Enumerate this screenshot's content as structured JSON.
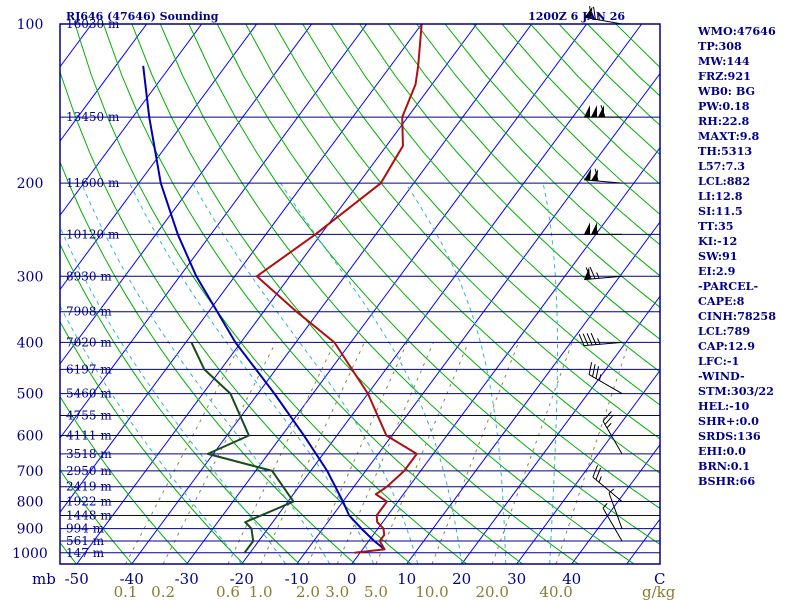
{
  "header": {
    "title": "RJ646 (47646) Sounding",
    "time": "1200Z  6 JAN 26"
  },
  "indices": [
    "WMO:47646",
    "TP:308",
    "MW:144",
    "FRZ:921",
    "WB0: BG",
    "PW:0.18",
    "RH:22.8",
    "MAXT:9.8",
    "TH:5313",
    "L57:7.3",
    "LCL:882",
    "LI:12.8",
    "SI:11.5",
    "TT:35",
    "KI:-12",
    "SW:91",
    "EI:2.9",
    "-PARCEL-",
    "CAPE:8",
    "CINH:78258",
    "LCL:789",
    "CAP:12.9",
    "LFC:-1",
    "-WIND-",
    "STM:303/22",
    "HEL:-10",
    "SHR+:0.0",
    "SRDS:136",
    "EHI:0.0",
    "BRN:0.1",
    "BSHR:66"
  ],
  "chart_data": {
    "type": "skew-t",
    "pressure_axis": {
      "label": "mb",
      "ticks": [
        100,
        200,
        300,
        400,
        500,
        600,
        700,
        800,
        900,
        1000
      ],
      "range": [
        100,
        1000
      ],
      "scale": "log"
    },
    "temperature_axis": {
      "unit": "C",
      "ticks": [
        -50,
        -40,
        -30,
        -20,
        -10,
        0,
        10,
        20,
        30,
        40
      ],
      "tick_labels": [
        "-50",
        "-40",
        "-30",
        "-20",
        "-10",
        "0",
        "10",
        "20",
        "30",
        "40"
      ]
    },
    "mixing_ratio_axis": {
      "unit": "g/kg",
      "ticks": [
        0.1,
        0.2,
        0.6,
        1.0,
        2.0,
        3.0,
        5.0,
        10.0,
        20.0,
        40.0
      ],
      "tick_labels": [
        "0.1",
        "0.2",
        "0.6",
        "1.0",
        "2.0",
        "3.0",
        "5.0",
        "10.0",
        "20.0",
        "40.0"
      ]
    },
    "height_labels": [
      {
        "p": 100,
        "label": "16030 m"
      },
      {
        "p": 150,
        "label": "13450 m"
      },
      {
        "p": 200,
        "label": "11600 m"
      },
      {
        "p": 250,
        "label": "10120 m"
      },
      {
        "p": 300,
        "label": "8930 m"
      },
      {
        "p": 350,
        "label": "7908 m"
      },
      {
        "p": 400,
        "label": "7020 m"
      },
      {
        "p": 450,
        "label": "6197 m"
      },
      {
        "p": 500,
        "label": "5460 m"
      },
      {
        "p": 550,
        "label": "4755 m"
      },
      {
        "p": 600,
        "label": "4111 m"
      },
      {
        "p": 650,
        "label": "3518 m"
      },
      {
        "p": 700,
        "label": "2950 m"
      },
      {
        "p": 750,
        "label": "2419 m"
      },
      {
        "p": 800,
        "label": "1922 m"
      },
      {
        "p": 850,
        "label": "1448 m"
      },
      {
        "p": 900,
        "label": "994 m"
      },
      {
        "p": 950,
        "label": "561 m"
      },
      {
        "p": 1000,
        "label": "147 m"
      }
    ],
    "temperature_profile": [
      [
        1000,
        -1
      ],
      [
        985,
        4
      ],
      [
        950,
        2
      ],
      [
        925,
        2
      ],
      [
        900,
        1
      ],
      [
        875,
        -1
      ],
      [
        850,
        -2
      ],
      [
        800,
        -2
      ],
      [
        775,
        -5
      ],
      [
        750,
        -4
      ],
      [
        700,
        -3
      ],
      [
        660,
        -3
      ],
      [
        650,
        -3
      ],
      [
        600,
        -11
      ],
      [
        500,
        -20
      ],
      [
        400,
        -33
      ],
      [
        350,
        -44
      ],
      [
        300,
        -56
      ],
      [
        250,
        -51
      ],
      [
        200,
        -46
      ],
      [
        170,
        -47
      ],
      [
        150,
        -51
      ],
      [
        130,
        -53
      ],
      [
        120,
        -55
      ],
      [
        100,
        -60
      ]
    ],
    "dewpoint_profile": [
      [
        1000,
        -21
      ],
      [
        950,
        -21
      ],
      [
        900,
        -23
      ],
      [
        875,
        -25
      ],
      [
        850,
        -23
      ],
      [
        800,
        -19
      ],
      [
        700,
        -27
      ],
      [
        650,
        -41
      ],
      [
        600,
        -36
      ],
      [
        500,
        -45
      ],
      [
        450,
        -53
      ],
      [
        400,
        -59
      ]
    ],
    "parcel_path": [
      [
        985,
        4
      ],
      [
        950,
        1
      ],
      [
        900,
        -3
      ],
      [
        850,
        -7
      ],
      [
        800,
        -10
      ],
      [
        700,
        -17
      ],
      [
        600,
        -26
      ],
      [
        500,
        -37
      ],
      [
        400,
        -51
      ],
      [
        300,
        -67
      ],
      [
        250,
        -76
      ],
      [
        200,
        -86
      ],
      [
        150,
        -97
      ],
      [
        120,
        -105
      ]
    ],
    "wind_barbs": [
      {
        "p": 100,
        "dir": 280,
        "kt": 75
      },
      {
        "p": 150,
        "dir": 270,
        "kt": 160
      },
      {
        "p": 200,
        "dir": 275,
        "kt": 110
      },
      {
        "p": 250,
        "dir": 270,
        "kt": 105
      },
      {
        "p": 300,
        "dir": 265,
        "kt": 75
      },
      {
        "p": 400,
        "dir": 265,
        "kt": 45
      },
      {
        "p": 500,
        "dir": 300,
        "kt": 35
      },
      {
        "p": 650,
        "dir": 330,
        "kt": 25
      },
      {
        "p": 800,
        "dir": 310,
        "kt": 25
      },
      {
        "p": 900,
        "dir": 340,
        "kt": 5
      },
      {
        "p": 950,
        "dir": 330,
        "kt": 5
      }
    ],
    "colors": {
      "frame": "#00008b",
      "isobar": "#00008b",
      "isotherm": "#0000ff",
      "dry_adiabat": "#00b000",
      "moist_adiabat": "#35b5c8",
      "mixing_ratio": "#8b8a4a",
      "temperature": "#b01010",
      "dewpoint": "#1a4a1a",
      "parcel": "#0000b0"
    }
  }
}
